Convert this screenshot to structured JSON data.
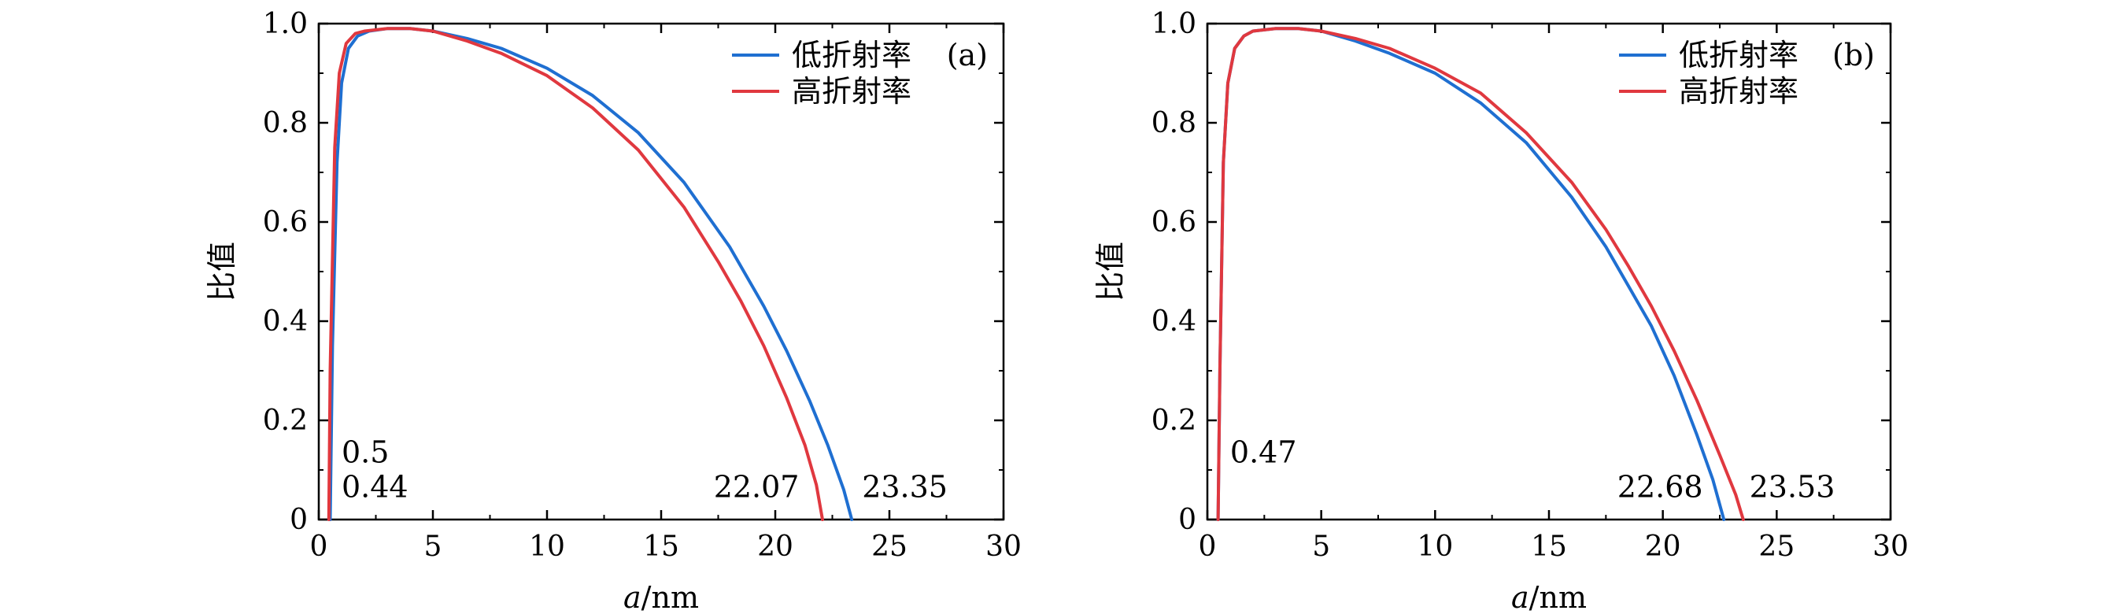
{
  "chart_data": [
    {
      "type": "line",
      "panel_label": "(a)",
      "xlabel_italic": "a",
      "xlabel_unit": "/nm",
      "ylabel": "比值",
      "xlim": [
        0,
        30
      ],
      "ylim": [
        0,
        1.0
      ],
      "xticks": [
        0,
        5,
        10,
        15,
        20,
        25,
        30
      ],
      "yticks": [
        0,
        0.2,
        0.4,
        0.6,
        0.8,
        1.0
      ],
      "ytick_labels": [
        "0",
        "0.2",
        "0.4",
        "0.6",
        "0.8",
        "1.0"
      ],
      "legend_position": "top-right",
      "series": [
        {
          "name": "低折射率",
          "color": "#1f6fd1",
          "x": [
            0.5,
            0.6,
            0.8,
            1.0,
            1.3,
            1.7,
            2.2,
            3.0,
            4.0,
            5.0,
            6.5,
            8.0,
            10.0,
            12.0,
            14.0,
            16.0,
            18.0,
            19.5,
            20.5,
            21.5,
            22.3,
            23.0,
            23.35
          ],
          "y": [
            0,
            0.35,
            0.72,
            0.88,
            0.95,
            0.975,
            0.985,
            0.99,
            0.99,
            0.985,
            0.97,
            0.95,
            0.91,
            0.855,
            0.78,
            0.68,
            0.55,
            0.43,
            0.34,
            0.24,
            0.15,
            0.06,
            0
          ]
        },
        {
          "name": "高折射率",
          "color": "#e0383f",
          "x": [
            0.44,
            0.5,
            0.7,
            0.9,
            1.2,
            1.6,
            2.0,
            3.0,
            4.0,
            5.0,
            6.5,
            8.0,
            10.0,
            12.0,
            14.0,
            16.0,
            17.5,
            18.5,
            19.5,
            20.5,
            21.3,
            21.8,
            22.07
          ],
          "y": [
            0,
            0.3,
            0.75,
            0.9,
            0.96,
            0.98,
            0.985,
            0.99,
            0.99,
            0.985,
            0.965,
            0.94,
            0.895,
            0.83,
            0.745,
            0.63,
            0.52,
            0.44,
            0.35,
            0.245,
            0.15,
            0.07,
            0
          ]
        }
      ],
      "annotations": [
        {
          "text": "0.5",
          "color": "#1f6fd1",
          "x": 1.0,
          "y": 0.115
        },
        {
          "text": "0.44",
          "color": "#e0383f",
          "x": 1.0,
          "y": 0.045
        },
        {
          "text": "22.07",
          "color": "#e0383f",
          "x": 17.3,
          "y": 0.045
        },
        {
          "text": "23.35",
          "color": "#1f6fd1",
          "x": 23.8,
          "y": 0.045
        }
      ]
    },
    {
      "type": "line",
      "panel_label": "(b)",
      "xlabel_italic": "a",
      "xlabel_unit": "/nm",
      "ylabel": "比值",
      "xlim": [
        0,
        30
      ],
      "ylim": [
        0,
        1.0
      ],
      "xticks": [
        0,
        5,
        10,
        15,
        20,
        25,
        30
      ],
      "yticks": [
        0,
        0.2,
        0.4,
        0.6,
        0.8,
        1.0
      ],
      "ytick_labels": [
        "0",
        "0.2",
        "0.4",
        "0.6",
        "0.8",
        "1.0"
      ],
      "legend_position": "top-right",
      "series": [
        {
          "name": "低折射率",
          "color": "#1f6fd1",
          "x": [
            0.47,
            0.55,
            0.7,
            0.9,
            1.2,
            1.6,
            2.0,
            3.0,
            4.0,
            5.0,
            6.5,
            8.0,
            10.0,
            12.0,
            14.0,
            16.0,
            17.5,
            18.5,
            19.5,
            20.5,
            21.5,
            22.2,
            22.68
          ],
          "y": [
            0,
            0.3,
            0.72,
            0.88,
            0.95,
            0.975,
            0.985,
            0.99,
            0.99,
            0.985,
            0.965,
            0.94,
            0.9,
            0.84,
            0.76,
            0.65,
            0.55,
            0.47,
            0.39,
            0.29,
            0.17,
            0.08,
            0
          ]
        },
        {
          "name": "高折射率",
          "color": "#e0383f",
          "x": [
            0.47,
            0.55,
            0.7,
            0.9,
            1.2,
            1.6,
            2.0,
            3.0,
            4.0,
            5.0,
            6.5,
            8.0,
            10.0,
            12.0,
            14.0,
            16.0,
            17.5,
            18.5,
            19.5,
            20.5,
            21.5,
            22.5,
            23.2,
            23.53
          ],
          "y": [
            0,
            0.3,
            0.72,
            0.88,
            0.95,
            0.975,
            0.985,
            0.99,
            0.99,
            0.985,
            0.97,
            0.95,
            0.91,
            0.86,
            0.78,
            0.68,
            0.585,
            0.51,
            0.43,
            0.34,
            0.24,
            0.13,
            0.05,
            0
          ]
        }
      ],
      "annotations": [
        {
          "text": "0.47",
          "color": "#e0383f",
          "x": 1.0,
          "y": 0.115
        },
        {
          "text": "22.68",
          "color": "#1f6fd1",
          "x": 18.0,
          "y": 0.045
        },
        {
          "text": "23.53",
          "color": "#e0383f",
          "x": 23.8,
          "y": 0.045
        }
      ]
    }
  ]
}
